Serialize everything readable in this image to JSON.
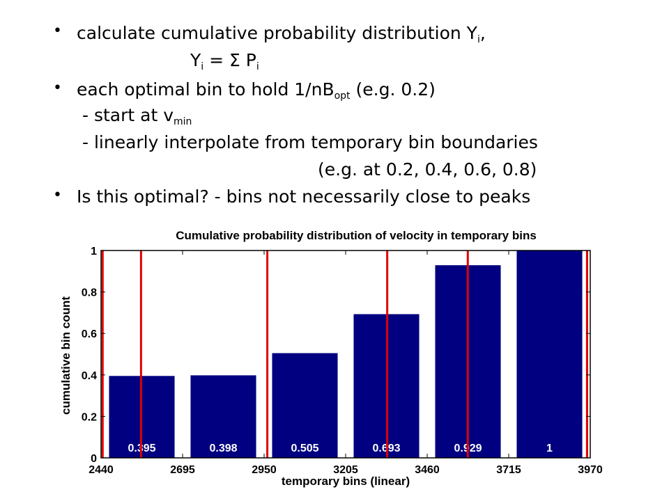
{
  "bullets": [
    {
      "text": "calculate cumulative probability distribution Y",
      "sub": "i",
      "tail": ","
    },
    {
      "indent": "Y",
      "sub": "i",
      "mid": " = Σ P",
      "sub2": "i"
    },
    {
      "text": "each optimal bin to hold 1/nB",
      "sub": "opt",
      "tail": " (e.g. 0.2)"
    },
    {
      "text": "- start at v",
      "sub": "min"
    },
    {
      "text": "-  linearly interpolate from temporary bin boundaries"
    },
    {
      "text": "(e.g. at 0.2, 0.4, 0.6, 0.8)"
    },
    {
      "text": "Is this optimal? - bins not necessarily close to peaks"
    }
  ],
  "chart_data": {
    "type": "bar",
    "title": "Cumulative probability distribution of velocity in temporary bins",
    "xlabel": "temporary bins (linear)",
    "ylabel": "cumulative bin count",
    "xlim": [
      2440,
      3970
    ],
    "ylim": [
      0,
      1
    ],
    "xticks": [
      "2440",
      "2695",
      "2950",
      "3205",
      "3460",
      "3715",
      "3970"
    ],
    "yticks": [
      "0",
      "0.2",
      "0.4",
      "0.6",
      "0.8",
      "1"
    ],
    "bar_centers": [
      2567.5,
      2822.5,
      3077.5,
      3332.5,
      3587.5,
      3842.5
    ],
    "bar_width": 205,
    "values": [
      0.395,
      0.398,
      0.505,
      0.693,
      0.929,
      1
    ],
    "data_labels": [
      "0.395",
      "0.398",
      "0.505",
      "0.693",
      "0.929",
      "1"
    ],
    "boundaries": [
      2445,
      2565,
      2960,
      3335,
      3587,
      3960
    ],
    "bar_color": "#000080",
    "boundary_color": "#e00000",
    "grid": false
  }
}
